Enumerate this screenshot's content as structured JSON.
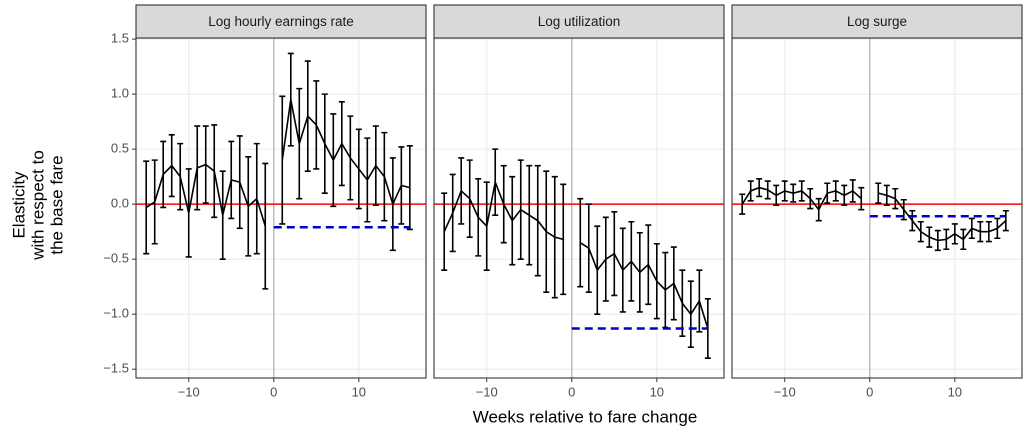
{
  "x_label": "Weeks relative to fare change",
  "y_label": [
    "Elasticity",
    "with respect to",
    "the base fare"
  ],
  "hline": 0,
  "vline": 0,
  "hline_color": "#ff0000",
  "vline_color": "#bebebe",
  "ref_color": "#0000cc",
  "line_color": "#000000",
  "chart_data": [
    {
      "type": "line",
      "title": "Log hourly earnings rate",
      "x": [
        -15,
        -14,
        -13,
        -12,
        -11,
        -10,
        -9,
        -8,
        -7,
        -6,
        -5,
        -4,
        -3,
        -2,
        -1,
        0,
        1,
        2,
        3,
        4,
        5,
        6,
        7,
        8,
        9,
        10,
        11,
        12,
        13,
        14,
        15,
        16
      ],
      "values": [
        -0.03,
        0.02,
        0.27,
        0.35,
        0.25,
        -0.08,
        0.33,
        0.36,
        0.3,
        -0.1,
        0.22,
        0.2,
        -0.02,
        0.05,
        -0.2,
        null,
        0.4,
        0.95,
        0.55,
        0.8,
        0.72,
        0.55,
        0.4,
        0.55,
        0.42,
        0.32,
        0.22,
        0.35,
        0.25,
        0.0,
        0.17,
        0.15
      ],
      "errors": [
        0.42,
        0.38,
        0.3,
        0.28,
        0.3,
        0.4,
        0.38,
        0.35,
        0.42,
        0.4,
        0.35,
        0.42,
        0.45,
        0.5,
        0.57,
        null,
        0.58,
        0.42,
        0.5,
        0.5,
        0.4,
        0.45,
        0.42,
        0.38,
        0.38,
        0.36,
        0.38,
        0.36,
        0.4,
        0.42,
        0.35,
        0.38
      ],
      "ref_line": {
        "value": -0.21,
        "x": [
          0,
          16
        ]
      },
      "xlim": [
        -16.2,
        17.9
      ],
      "xticks": [
        {
          "value": -10,
          "label": "−10"
        },
        0,
        10
      ],
      "ylim": [
        -1.58,
        1.51
      ],
      "yticks": [
        {
          "value": -1.5,
          "label": "−1.5"
        },
        {
          "value": -1.0,
          "label": "−1.0"
        },
        {
          "value": -0.5,
          "label": "−0.5"
        },
        {
          "value": 0,
          "label": "0.0"
        },
        {
          "value": 0.5,
          "label": "0.5"
        },
        {
          "value": 1.0,
          "label": "1.0"
        },
        {
          "value": 1.5,
          "label": "1.5"
        }
      ]
    },
    {
      "type": "line",
      "title": "Log utilization",
      "x": [
        -15,
        -14,
        -13,
        -12,
        -11,
        -10,
        -9,
        -8,
        -7,
        -6,
        -5,
        -4,
        -3,
        -2,
        -1,
        0,
        1,
        2,
        3,
        4,
        5,
        6,
        7,
        8,
        9,
        10,
        11,
        12,
        13,
        14,
        15,
        16
      ],
      "values": [
        -0.25,
        -0.08,
        0.12,
        0.05,
        -0.12,
        -0.2,
        0.2,
        0.0,
        -0.15,
        -0.05,
        -0.1,
        -0.15,
        -0.25,
        -0.3,
        -0.32,
        null,
        -0.35,
        -0.4,
        -0.6,
        -0.5,
        -0.45,
        -0.6,
        -0.52,
        -0.62,
        -0.55,
        -0.7,
        -0.78,
        -0.72,
        -0.9,
        -1.0,
        -0.88,
        -1.13
      ],
      "errors": [
        0.35,
        0.35,
        0.3,
        0.35,
        0.35,
        0.4,
        0.3,
        0.35,
        0.4,
        0.45,
        0.45,
        0.5,
        0.55,
        0.55,
        0.5,
        null,
        0.4,
        0.4,
        0.4,
        0.38,
        0.38,
        0.38,
        0.36,
        0.36,
        0.36,
        0.34,
        0.34,
        0.33,
        0.3,
        0.3,
        0.28,
        0.27
      ],
      "ref_line": {
        "value": -1.13,
        "x": [
          0,
          16
        ]
      },
      "xlim": [
        -16.2,
        17.9
      ],
      "xticks": [
        {
          "value": -10,
          "label": "−10"
        },
        0,
        10
      ]
    },
    {
      "type": "line",
      "title": "Log surge",
      "x": [
        -15,
        -14,
        -13,
        -12,
        -11,
        -10,
        -9,
        -8,
        -7,
        -6,
        -5,
        -4,
        -3,
        -2,
        -1,
        0,
        1,
        2,
        3,
        4,
        5,
        6,
        7,
        8,
        9,
        10,
        11,
        12,
        13,
        14,
        15,
        16
      ],
      "values": [
        0.0,
        0.12,
        0.15,
        0.13,
        0.08,
        0.12,
        0.1,
        0.12,
        0.05,
        -0.05,
        0.1,
        0.12,
        0.08,
        0.12,
        0.05,
        null,
        0.1,
        0.08,
        0.05,
        -0.05,
        -0.15,
        -0.25,
        -0.3,
        -0.33,
        -0.32,
        -0.27,
        -0.32,
        -0.22,
        -0.25,
        -0.25,
        -0.22,
        -0.15
      ],
      "errors": [
        0.09,
        0.09,
        0.08,
        0.08,
        0.09,
        0.09,
        0.08,
        0.09,
        0.09,
        0.1,
        0.09,
        0.09,
        0.09,
        0.1,
        0.1,
        null,
        0.09,
        0.09,
        0.09,
        0.09,
        0.09,
        0.09,
        0.09,
        0.09,
        0.09,
        0.09,
        0.09,
        0.09,
        0.09,
        0.09,
        0.09,
        0.09
      ],
      "ref_line": {
        "value": -0.11,
        "x": [
          0,
          16
        ]
      },
      "xlim": [
        -16.2,
        17.9
      ],
      "xticks": [
        {
          "value": -10,
          "label": "−10"
        },
        0,
        10
      ]
    }
  ]
}
